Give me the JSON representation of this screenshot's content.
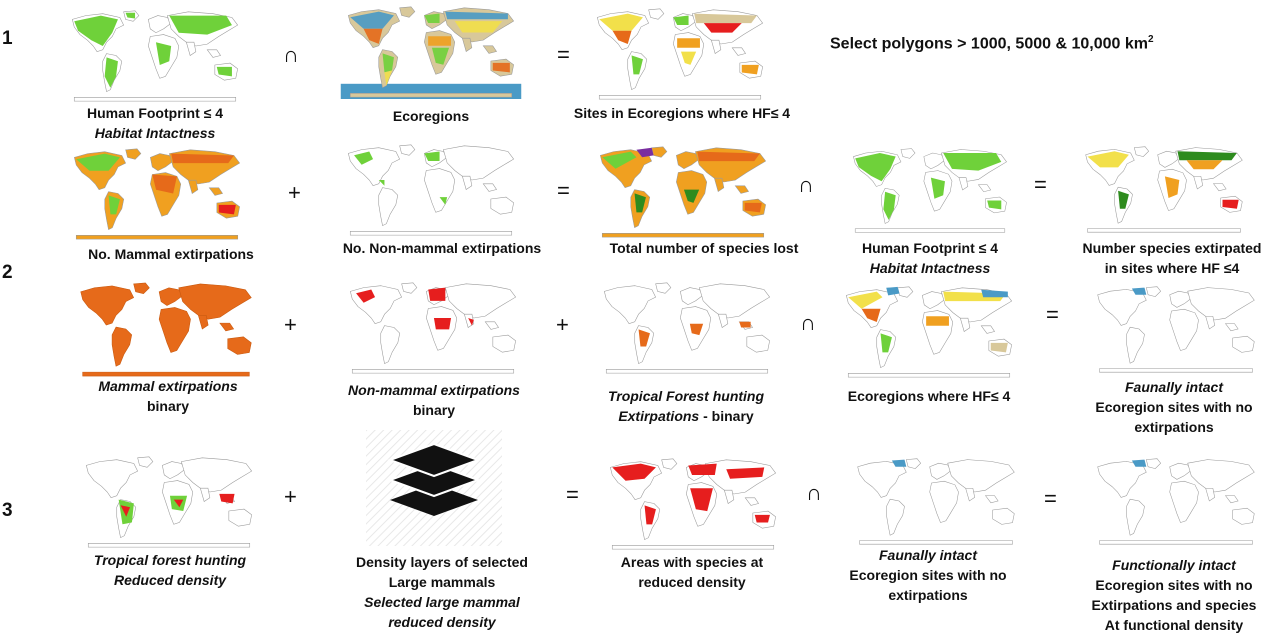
{
  "rows": {
    "row1_number": "1",
    "row2_number": "2",
    "row3_number": "3"
  },
  "operators": {
    "intersect": "∩",
    "plus": "+",
    "equals": "="
  },
  "note": {
    "text": "Select polygons > 1000, 5000 & 10,000 km",
    "superscript": "2"
  },
  "captions": {
    "r1_hf": [
      "Human Footprint ≤ 4",
      "Habitat Intactness"
    ],
    "r1_ecoregions": "Ecoregions",
    "r1_sites": "Sites in Ecoregions where HF≤ 4",
    "r2a_mammal": "No. Mammal extirpations",
    "r2a_nonmammal": "No. Non-mammal extirpations",
    "r2a_total": "Total number of species lost",
    "r2a_hf": [
      "Human Footprint ≤ 4",
      "Habitat Intactness"
    ],
    "r2a_result": [
      "Number species extirpated",
      "in sites where HF ≤4"
    ],
    "r2b_mammal": [
      "Mammal extirpations",
      "binary"
    ],
    "r2b_nonmammal": [
      "Non-mammal extirpations",
      "binary"
    ],
    "r2b_tropical": [
      "Tropical Forest hunting",
      "Extirpations",
      " - binary"
    ],
    "r2b_ecoregions": "Ecoregions where HF≤ 4",
    "r2b_result": [
      "Faunally intact",
      "Ecoregion sites with no",
      "extirpations"
    ],
    "r3_tropical": [
      "Tropical forest hunting",
      "Reduced density"
    ],
    "r3_density": [
      "Density layers of selected",
      "Large mammals",
      "Selected large mammal",
      "reduced density"
    ],
    "r3_areas": [
      "Areas with species at",
      "reduced density"
    ],
    "r3_faunal": [
      "Faunally intact",
      "Ecoregion sites with no",
      "extirpations"
    ],
    "r3_result": [
      "Functionally intact",
      "Ecoregion sites with no",
      "Extirpations and species",
      "At functional density"
    ]
  },
  "colors": {
    "land_outline": "#9a9a9a",
    "green": "#6fd13a",
    "dark_green": "#2e8b1e",
    "orange": "#e66a1a",
    "amber": "#f0a020",
    "yellow": "#f2e04a",
    "red": "#e61e1e",
    "blue": "#4a9ac6",
    "purple": "#7a2ea0",
    "tan": "#d8c89a"
  }
}
